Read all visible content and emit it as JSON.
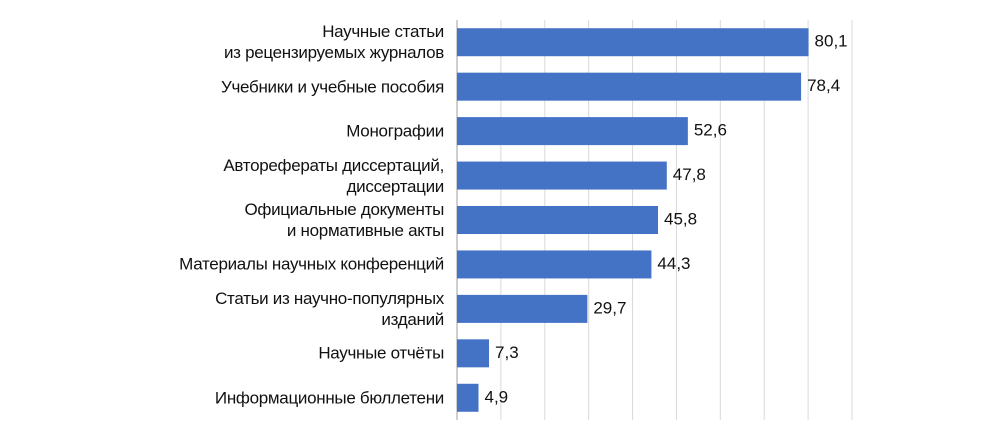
{
  "chart_data": {
    "type": "barh",
    "categories": [
      "Научные статьи\nиз рецензируемых  журналов",
      "Учебники и учебные пособия",
      "Монографии",
      "Авторефераты диссертаций,\nдиссертации",
      "Официальные документы\nи нормативные акты",
      "Материалы научных конференций",
      "Статьи из научно-популярных\nизданий",
      "Научные отчёты",
      "Информационные бюллетени"
    ],
    "values": [
      80.1,
      78.4,
      52.6,
      47.8,
      45.8,
      44.3,
      29.7,
      7.3,
      4.9
    ],
    "value_labels": [
      "80,1",
      "78,4",
      "52,6",
      "47,8",
      "45,8",
      "44,3",
      "29,7",
      "7,3",
      "4,9"
    ],
    "color": "#4472c4",
    "xlim": [
      0,
      90
    ],
    "xticks": [
      0,
      10,
      20,
      30,
      40,
      50,
      60,
      70,
      80,
      90
    ],
    "grid": true
  }
}
